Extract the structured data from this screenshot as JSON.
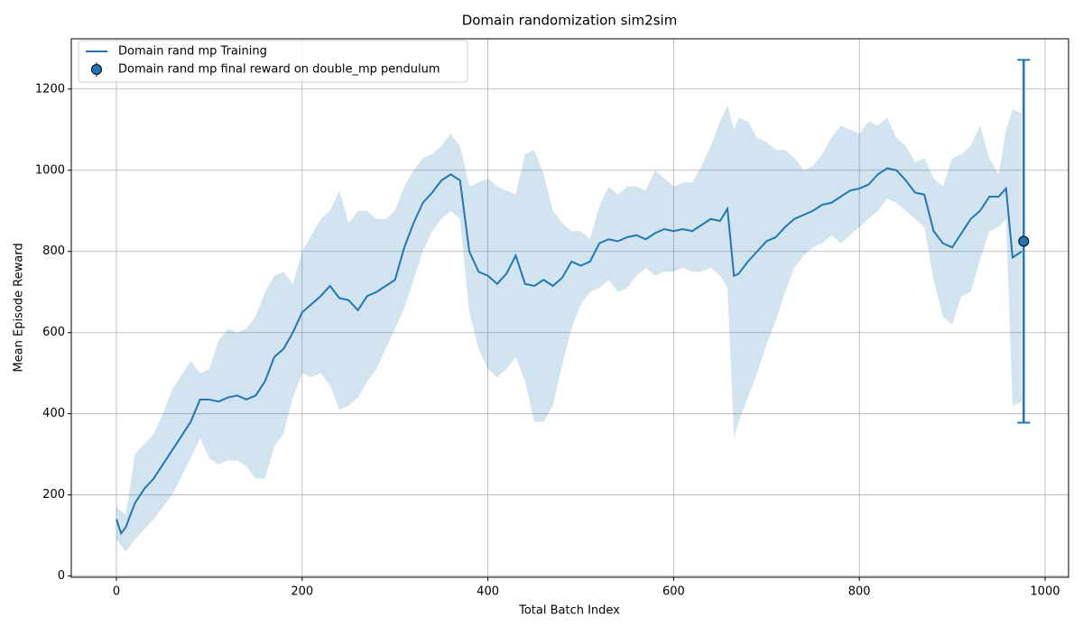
{
  "chart_data": {
    "type": "line",
    "title": "Domain randomization sim2sim",
    "xlabel": "Total Batch Index",
    "ylabel": "Mean Episode Reward",
    "x": [
      0,
      5,
      10,
      20,
      30,
      40,
      50,
      60,
      70,
      80,
      90,
      100,
      110,
      120,
      130,
      140,
      150,
      160,
      170,
      180,
      190,
      200,
      210,
      220,
      230,
      240,
      250,
      260,
      270,
      280,
      290,
      300,
      310,
      320,
      330,
      340,
      350,
      360,
      370,
      380,
      390,
      400,
      410,
      420,
      430,
      440,
      450,
      460,
      470,
      480,
      490,
      500,
      510,
      520,
      530,
      540,
      550,
      560,
      570,
      580,
      590,
      600,
      610,
      620,
      630,
      640,
      650,
      658,
      665,
      670,
      680,
      690,
      700,
      710,
      720,
      730,
      740,
      750,
      760,
      770,
      780,
      790,
      800,
      810,
      820,
      830,
      840,
      850,
      860,
      870,
      880,
      890,
      900,
      910,
      920,
      930,
      940,
      950,
      958,
      965,
      975
    ],
    "series": [
      {
        "name": "Domain rand mp Training",
        "color": "#1f77b4",
        "values": [
          140,
          105,
          120,
          180,
          215,
          240,
          275,
          310,
          345,
          380,
          435,
          435,
          430,
          440,
          445,
          435,
          445,
          480,
          540,
          560,
          600,
          650,
          670,
          690,
          715,
          685,
          680,
          655,
          690,
          700,
          715,
          730,
          810,
          870,
          920,
          945,
          975,
          990,
          975,
          800,
          750,
          740,
          720,
          745,
          790,
          720,
          715,
          730,
          715,
          735,
          775,
          765,
          775,
          820,
          830,
          825,
          835,
          840,
          830,
          845,
          855,
          850,
          855,
          850,
          865,
          880,
          875,
          905,
          740,
          745,
          775,
          800,
          825,
          835,
          860,
          880,
          890,
          900,
          915,
          920,
          935,
          950,
          955,
          965,
          990,
          1005,
          1000,
          975,
          945,
          940,
          850,
          820,
          810,
          845,
          880,
          900,
          935,
          935,
          955,
          785,
          800
        ],
        "lower": [
          90,
          75,
          60,
          90,
          115,
          140,
          170,
          200,
          245,
          290,
          340,
          290,
          275,
          285,
          285,
          270,
          240,
          240,
          320,
          350,
          440,
          500,
          490,
          500,
          470,
          410,
          420,
          440,
          480,
          510,
          560,
          610,
          660,
          730,
          800,
          850,
          880,
          900,
          880,
          650,
          560,
          510,
          490,
          510,
          540,
          480,
          380,
          380,
          420,
          520,
          610,
          670,
          700,
          710,
          730,
          700,
          710,
          740,
          760,
          740,
          750,
          750,
          760,
          750,
          750,
          760,
          740,
          710,
          340,
          380,
          440,
          500,
          570,
          630,
          700,
          760,
          790,
          810,
          820,
          840,
          820,
          840,
          860,
          880,
          900,
          930,
          920,
          900,
          880,
          860,
          730,
          640,
          620,
          690,
          700,
          780,
          850,
          860,
          880,
          420,
          430
        ],
        "upper": [
          170,
          160,
          150,
          300,
          325,
          350,
          400,
          460,
          495,
          530,
          500,
          510,
          580,
          610,
          600,
          610,
          640,
          700,
          740,
          750,
          720,
          800,
          840,
          880,
          900,
          950,
          870,
          900,
          900,
          880,
          880,
          900,
          960,
          1000,
          1030,
          1040,
          1060,
          1090,
          1060,
          960,
          970,
          980,
          960,
          950,
          940,
          1040,
          1050,
          990,
          900,
          870,
          850,
          850,
          830,
          910,
          960,
          940,
          960,
          960,
          950,
          1000,
          980,
          960,
          970,
          970,
          1010,
          1060,
          1120,
          1160,
          1100,
          1130,
          1120,
          1080,
          1070,
          1050,
          1050,
          1030,
          1000,
          1010,
          1040,
          1080,
          1110,
          1100,
          1090,
          1120,
          1110,
          1130,
          1080,
          1060,
          1020,
          1030,
          980,
          960,
          1030,
          1040,
          1060,
          1110,
          1030,
          990,
          1100,
          1150,
          1140
        ]
      }
    ],
    "errorbar": {
      "name": "Domain rand mp final reward on double_mp pendulum",
      "color": "#1f77b4",
      "x": 977,
      "y": 825,
      "yerr": 447
    },
    "xlim": [
      -48.6,
      1025.3
    ],
    "ylim": [
      -3,
      1324
    ],
    "xticks": [
      0,
      200,
      400,
      600,
      800,
      1000
    ],
    "yticks": [
      0,
      200,
      400,
      600,
      800,
      1000,
      1200
    ],
    "grid": true,
    "legend": "upper-left"
  }
}
